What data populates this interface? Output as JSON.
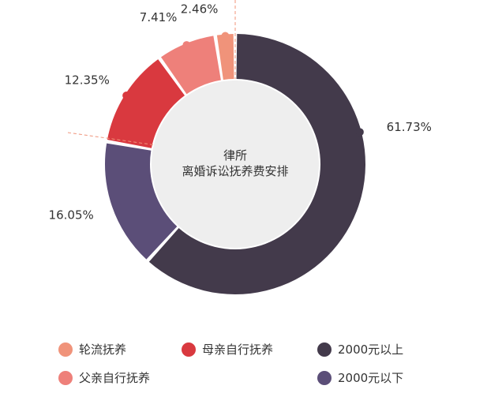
{
  "chart_data": {
    "type": "pie",
    "title": "律所\n离婚诉讼抚养费安排",
    "title_lines": [
      "律所",
      "离婚诉讼抚养费安排"
    ],
    "series": [
      {
        "name": "轮流抚养",
        "value": 2.46,
        "label": "2.46%",
        "color": "#F0937A"
      },
      {
        "name": "父亲自行抚养",
        "value": 7.41,
        "label": "7.41%",
        "color": "#EE807A"
      },
      {
        "name": "母亲自行抚养",
        "value": 12.35,
        "label": "12.35%",
        "color": "#D9393F"
      },
      {
        "name": "2000元以下",
        "value": 16.05,
        "label": "16.05%",
        "color": "#5B4E78"
      },
      {
        "name": "2000元以上",
        "value": 61.73,
        "label": "61.73%",
        "color": "#433A4B"
      }
    ],
    "legend": {
      "placement": "bottom",
      "order": [
        "轮流抚养",
        "母亲自行抚养",
        "2000元以上",
        "父亲自行抚养",
        "2000元以下"
      ]
    },
    "center_fill": "#EEEEEE",
    "accent_line_color": "#F0937A"
  }
}
